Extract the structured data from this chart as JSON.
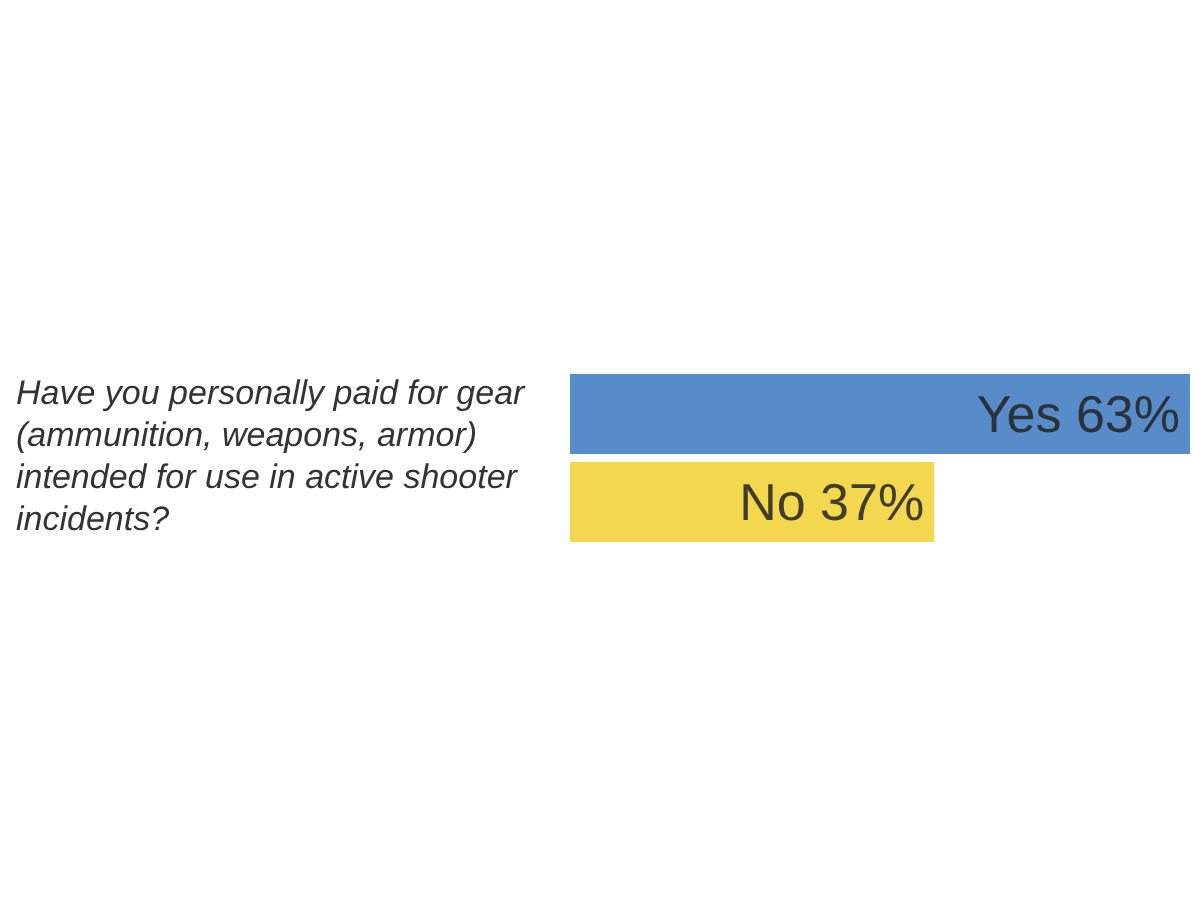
{
  "chart_data": {
    "type": "bar",
    "orientation": "horizontal",
    "title": "Have you personally paid for gear (ammunition, weapons, armor) intended for use in active shooter incidents?",
    "categories": [
      null,
      null
    ],
    "values": [
      63,
      37
    ],
    "value_labels": [
      "Yes 63%",
      "No 37%"
    ],
    "colors": [
      "#3a78c0",
      "#f0d030"
    ]
  }
}
